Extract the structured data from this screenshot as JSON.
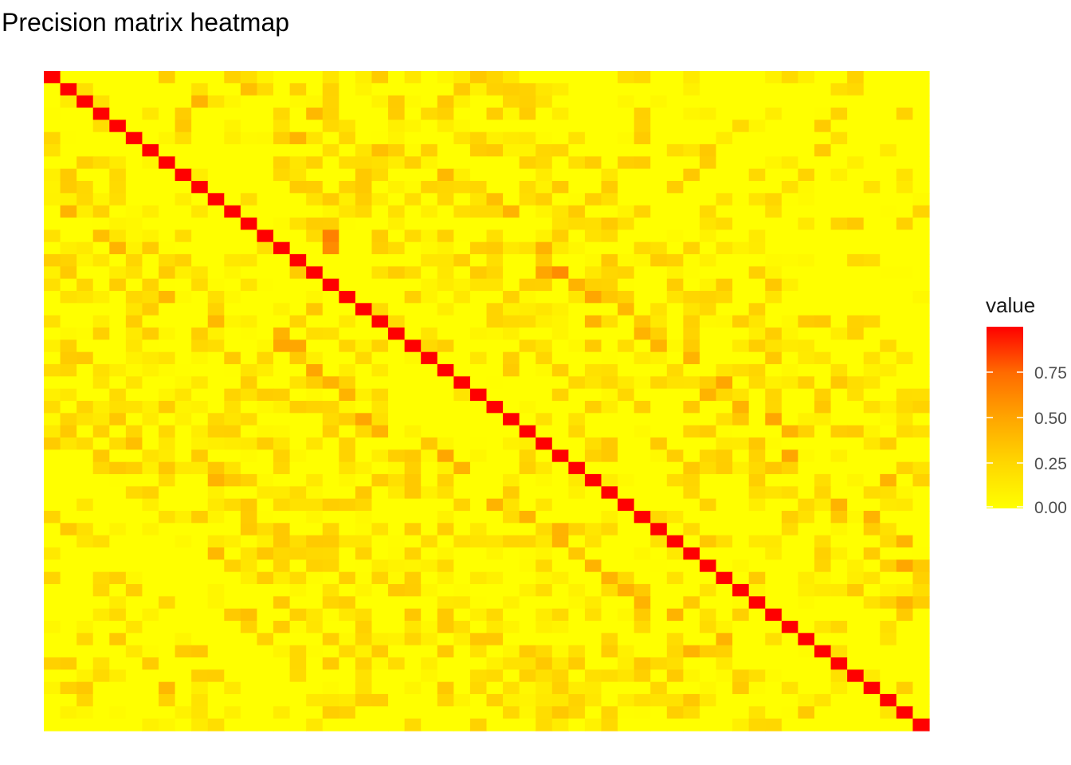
{
  "chart_data": {
    "type": "heatmap",
    "title": "Precision matrix heatmap",
    "xlabel": "",
    "ylabel": "",
    "n": 54,
    "diagonal_value": 1.0,
    "value_range": [
      0,
      1
    ],
    "colorscale": {
      "low": "#FFFF00",
      "high": "#FF0000"
    },
    "grid": false,
    "legend": {
      "title": "value",
      "placement": "right",
      "ticks": [
        0.0,
        0.25,
        0.5,
        0.75
      ],
      "tick_labels": [
        "0.00",
        "0.25",
        "0.50",
        "0.75"
      ]
    },
    "upper_triangle_strong_cells": [
      [
        13,
        17,
        0.5
      ],
      [
        14,
        17,
        0.45
      ],
      [
        14,
        30,
        0.3
      ],
      [
        16,
        31,
        0.45
      ],
      [
        16,
        30,
        0.35
      ],
      [
        17,
        32,
        0.3
      ],
      [
        18,
        33,
        0.35
      ],
      [
        20,
        33,
        0.3
      ],
      [
        21,
        36,
        0.3
      ],
      [
        22,
        37,
        0.3
      ],
      [
        23,
        39,
        0.3
      ],
      [
        25,
        41,
        0.35
      ],
      [
        26,
        40,
        0.3
      ],
      [
        28,
        44,
        0.35
      ],
      [
        29,
        45,
        0.3
      ],
      [
        31,
        45,
        0.35
      ],
      [
        33,
        51,
        0.3
      ],
      [
        36,
        50,
        0.3
      ],
      [
        38,
        52,
        0.3
      ],
      [
        40,
        52,
        0.35
      ],
      [
        43,
        52,
        0.3
      ],
      [
        5,
        15,
        0.3
      ],
      [
        2,
        9,
        0.3
      ],
      [
        3,
        16,
        0.28
      ],
      [
        8,
        24,
        0.28
      ],
      [
        11,
        28,
        0.3
      ],
      [
        19,
        35,
        0.28
      ],
      [
        27,
        42,
        0.3
      ],
      [
        35,
        48,
        0.3
      ],
      [
        1,
        12,
        0.25
      ],
      [
        6,
        20,
        0.25
      ],
      [
        10,
        27,
        0.25
      ]
    ],
    "lower_triangle_strong_cells": [
      [
        22,
        14,
        0.35
      ],
      [
        22,
        15,
        0.35
      ],
      [
        21,
        14,
        0.3
      ],
      [
        24,
        16,
        0.35
      ],
      [
        25,
        17,
        0.3
      ],
      [
        26,
        18,
        0.3
      ],
      [
        28,
        19,
        0.35
      ],
      [
        29,
        20,
        0.3
      ],
      [
        31,
        24,
        0.35
      ],
      [
        32,
        25,
        0.3
      ],
      [
        35,
        27,
        0.3
      ],
      [
        36,
        29,
        0.3
      ],
      [
        37,
        31,
        0.3
      ],
      [
        38,
        31,
        0.3
      ],
      [
        40,
        33,
        0.3
      ],
      [
        41,
        34,
        0.3
      ],
      [
        42,
        35,
        0.3
      ],
      [
        43,
        36,
        0.3
      ],
      [
        44,
        38,
        0.3
      ],
      [
        46,
        41,
        0.3
      ],
      [
        47,
        39,
        0.3
      ],
      [
        14,
        4,
        0.3
      ],
      [
        13,
        3,
        0.25
      ],
      [
        11,
        1,
        0.3
      ],
      [
        18,
        7,
        0.28
      ],
      [
        20,
        10,
        0.28
      ],
      [
        33,
        10,
        0.3
      ],
      [
        30,
        5,
        0.25
      ],
      [
        39,
        10,
        0.28
      ],
      [
        44,
        12,
        0.25
      ],
      [
        50,
        7,
        0.28
      ]
    ]
  }
}
